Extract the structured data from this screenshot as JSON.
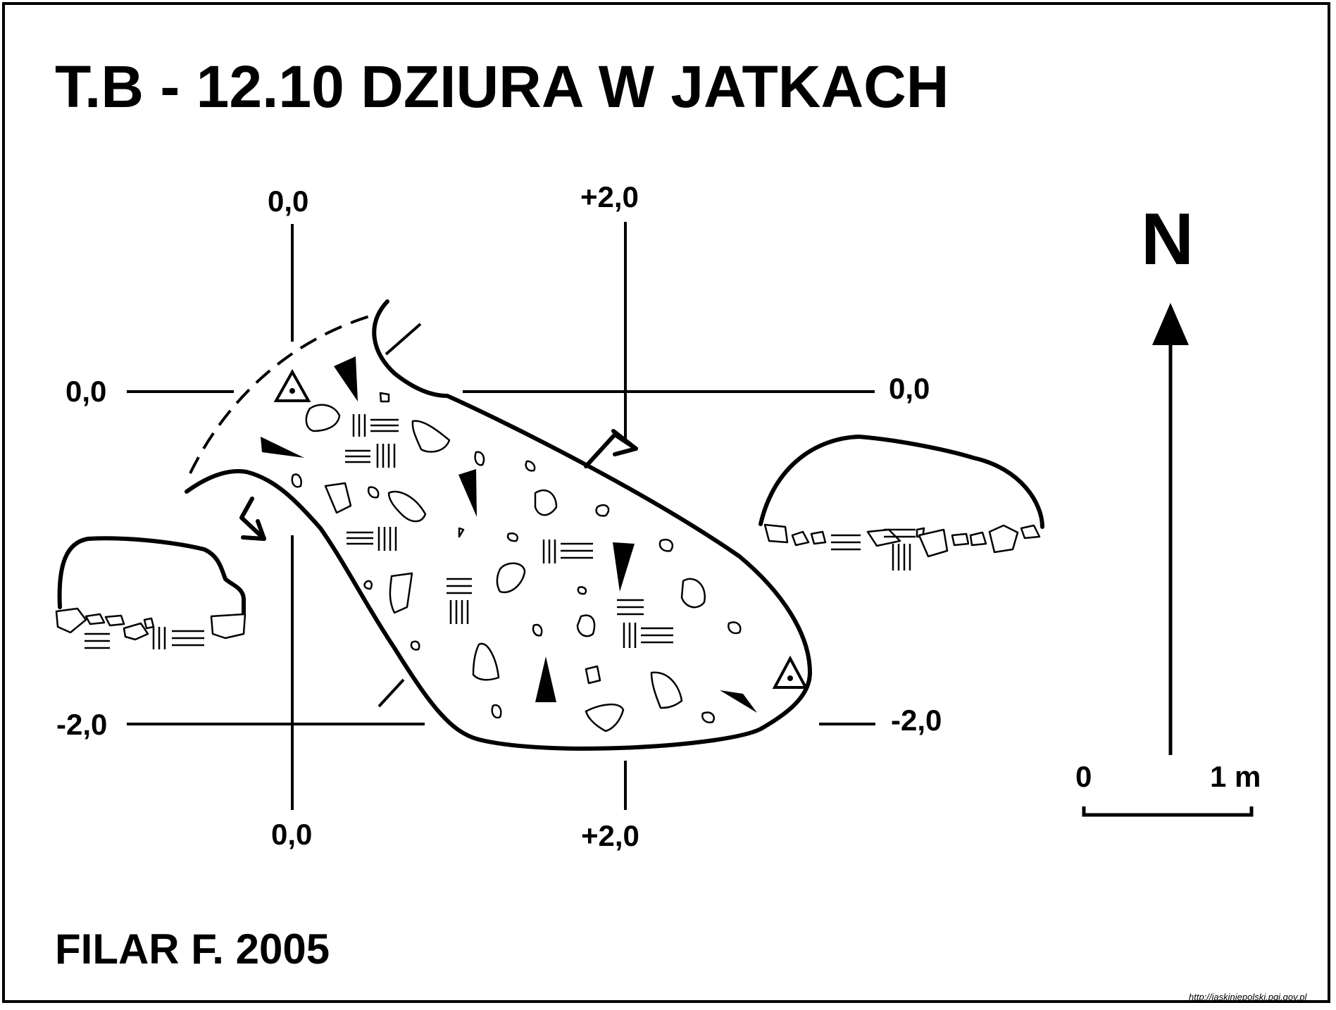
{
  "title": "T.B - 12.10  DZIURA W JATKACH",
  "author": "FILAR F. 2005",
  "north_label": "N",
  "scale": {
    "zero": "0",
    "end": "1 m"
  },
  "coordinates": {
    "top_left": "0,0",
    "top_right": "+2,0",
    "left_upper": "0,0",
    "right_upper": "0,0",
    "left_lower": "-2,0",
    "right_lower": "-2,0",
    "bottom_left": "0,0",
    "bottom_right": "+2,0"
  },
  "source_url": "http://jaskiniepolski.pgi.gov.pl"
}
